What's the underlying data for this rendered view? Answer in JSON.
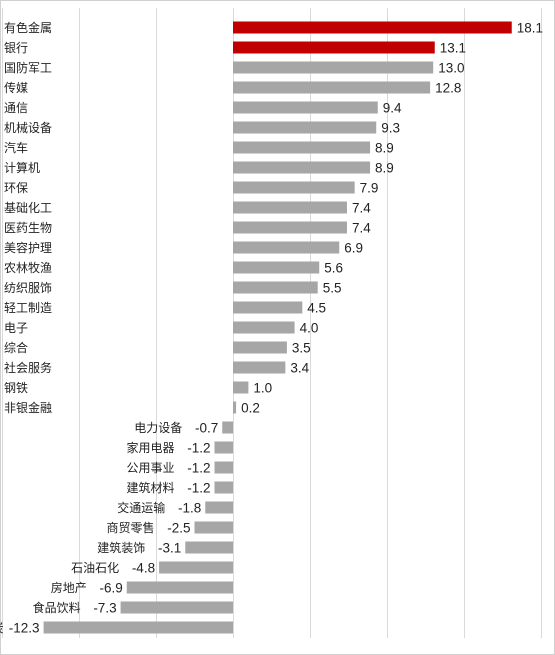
{
  "chart_data": {
    "type": "bar",
    "orientation": "horizontal",
    "categories": [
      "有色金属",
      "银行",
      "国防军工",
      "传媒",
      "通信",
      "机械设备",
      "汽车",
      "计算机",
      "环保",
      "基础化工",
      "医药生物",
      "美容护理",
      "农林牧渔",
      "纺织服饰",
      "轻工制造",
      "电子",
      "综合",
      "社会服务",
      "钢铁",
      "非银金融",
      "电力设备",
      "家用电器",
      "公用事业",
      "建筑材料",
      "交通运输",
      "商贸零售",
      "建筑装饰",
      "石油石化",
      "房地产",
      "食品饮料",
      "煤炭"
    ],
    "values": [
      18.1,
      13.1,
      13.0,
      12.8,
      9.4,
      9.3,
      8.9,
      8.9,
      7.9,
      7.4,
      7.4,
      6.9,
      5.6,
      5.5,
      4.5,
      4.0,
      3.5,
      3.4,
      1.0,
      0.2,
      -0.7,
      -1.2,
      -1.2,
      -1.2,
      -1.8,
      -2.5,
      -3.1,
      -4.8,
      -6.9,
      -7.3,
      -12.3
    ],
    "value_labels": [
      "18.1",
      "13.1",
      "13.0",
      "12.8",
      "9.4",
      "9.3",
      "8.9",
      "8.9",
      "7.9",
      "7.4",
      "7.4",
      "6.9",
      "5.6",
      "5.5",
      "4.5",
      "4.0",
      "3.5",
      "3.4",
      "1.0",
      "0.2",
      "-0.7",
      "-1.2",
      "-1.2",
      "-1.2",
      "-1.8",
      "-2.5",
      "-3.1",
      "-4.8",
      "-6.9",
      "-7.3",
      "-12.3"
    ],
    "highlighted": [
      "有色金属",
      "银行"
    ],
    "xlim": [
      -15,
      20
    ],
    "grid_x_major": [
      -15,
      -10,
      -5,
      0,
      5,
      10,
      15,
      20
    ],
    "grid": true,
    "title": "",
    "xlabel": "",
    "ylabel": ""
  },
  "colors": {
    "highlight": "#C00000",
    "bar": "#A6A6A6",
    "grid": "#D9D9D9",
    "text": "#222222",
    "border": "#D0D0D0"
  }
}
